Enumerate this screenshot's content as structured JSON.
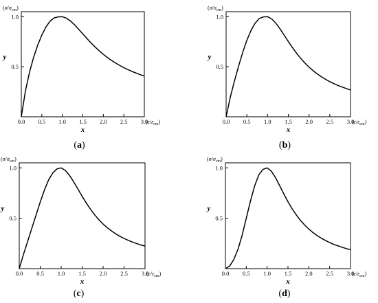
{
  "chart_data": [
    {
      "type": "line",
      "panel": "(a)",
      "caption": "(a)",
      "xlabel": "x",
      "ylabel": "y",
      "x_unit_label": "(ε/ε_cm)",
      "y_unit_label": "(σ/σ_cm)",
      "xlim": [
        0,
        3.0
      ],
      "ylim": [
        0,
        1.05
      ],
      "xticks": [
        "0.0",
        "0.5",
        "1.0",
        "1.5",
        "2.0",
        "2.5",
        "3.0"
      ],
      "yticks": [
        "0.5",
        "1.0"
      ],
      "series": [
        {
          "x": [
            0,
            0.1,
            0.2,
            0.3,
            0.4,
            0.5,
            0.6,
            0.7,
            0.8,
            0.9,
            1.0,
            1.1,
            1.2,
            1.3,
            1.4,
            1.5,
            1.6,
            1.7,
            1.8,
            1.9,
            2.0,
            2.1,
            2.2,
            2.3,
            2.4,
            2.5,
            2.6,
            2.7,
            2.8,
            2.9,
            3.0
          ],
          "y": [
            0.0,
            0.257,
            0.445,
            0.594,
            0.716,
            0.816,
            0.897,
            0.954,
            0.988,
            0.998,
            1.0,
            0.985,
            0.957,
            0.918,
            0.874,
            0.828,
            0.782,
            0.738,
            0.697,
            0.659,
            0.624,
            0.592,
            0.563,
            0.537,
            0.513,
            0.491,
            0.471,
            0.453,
            0.437,
            0.421,
            0.407
          ]
        }
      ]
    },
    {
      "type": "line",
      "panel": "(b)",
      "caption": "(b)",
      "xlabel": "x",
      "ylabel": "y",
      "x_unit_label": "(ε/ε_cm)",
      "y_unit_label": "(σ/σ_cm)",
      "xlim": [
        0,
        3.0
      ],
      "ylim": [
        0,
        1.05
      ],
      "xticks": [
        "0.0",
        "0.5",
        "1.0",
        "1.5",
        "2.0",
        "2.5",
        "3.0"
      ],
      "yticks": [
        "0.5",
        "1.0"
      ],
      "series": [
        {
          "x": [
            0,
            0.1,
            0.2,
            0.3,
            0.4,
            0.5,
            0.6,
            0.7,
            0.8,
            0.9,
            1.0,
            1.1,
            1.2,
            1.3,
            1.4,
            1.5,
            1.6,
            1.7,
            1.8,
            1.9,
            2.0,
            2.1,
            2.2,
            2.3,
            2.4,
            2.5,
            2.6,
            2.7,
            2.8,
            2.9,
            3.0
          ],
          "y": [
            0.0,
            0.194,
            0.356,
            0.505,
            0.643,
            0.764,
            0.862,
            0.935,
            0.982,
            0.998,
            1.0,
            0.977,
            0.935,
            0.879,
            0.816,
            0.752,
            0.691,
            0.634,
            0.583,
            0.537,
            0.496,
            0.46,
            0.428,
            0.399,
            0.374,
            0.351,
            0.331,
            0.313,
            0.297,
            0.282,
            0.268
          ]
        }
      ]
    },
    {
      "type": "line",
      "panel": "(c)",
      "caption": "(c)",
      "xlabel": "x",
      "ylabel": "y",
      "x_unit_label": "(ε/ε_cm)",
      "y_unit_label": "(σ/σ_cm)",
      "xlim": [
        0,
        3.0
      ],
      "ylim": [
        0,
        1.05
      ],
      "xticks": [
        "0.0",
        "0.5",
        "1.0",
        "1.5",
        "2.0",
        "2.5",
        "3.0"
      ],
      "yticks": [
        "0.5",
        "1.0"
      ],
      "series": [
        {
          "x": [
            0,
            0.1,
            0.2,
            0.3,
            0.4,
            0.5,
            0.6,
            0.7,
            0.8,
            0.9,
            1.0,
            1.1,
            1.2,
            1.3,
            1.4,
            1.5,
            1.6,
            1.7,
            1.8,
            1.9,
            2.0,
            2.1,
            2.2,
            2.3,
            2.4,
            2.5,
            2.6,
            2.7,
            2.8,
            2.9,
            3.0
          ],
          "y": [
            0.0,
            0.14,
            0.27,
            0.4,
            0.53,
            0.66,
            0.78,
            0.88,
            0.95,
            0.99,
            1.0,
            0.974,
            0.925,
            0.86,
            0.79,
            0.718,
            0.651,
            0.589,
            0.534,
            0.485,
            0.443,
            0.406,
            0.374,
            0.346,
            0.321,
            0.3,
            0.281,
            0.264,
            0.249,
            0.235,
            0.224
          ]
        }
      ]
    },
    {
      "type": "line",
      "panel": "(d)",
      "caption": "(d)",
      "xlabel": "x",
      "ylabel": "y",
      "x_unit_label": "(ε/ε_cm)",
      "y_unit_label": "(σ/σ_cm)",
      "xlim": [
        0,
        3.0
      ],
      "ylim": [
        0,
        1.05
      ],
      "xticks": [
        "0.0",
        "0.5",
        "1.0",
        "1.5",
        "2.0",
        "2.5",
        "3.0"
      ],
      "yticks": [
        "0.5",
        "1.0"
      ],
      "series": [
        {
          "x": [
            0,
            0.1,
            0.2,
            0.3,
            0.4,
            0.5,
            0.6,
            0.7,
            0.8,
            0.9,
            1.0,
            1.1,
            1.2,
            1.3,
            1.4,
            1.5,
            1.6,
            1.7,
            1.8,
            1.9,
            2.0,
            2.1,
            2.2,
            2.3,
            2.4,
            2.5,
            2.6,
            2.7,
            2.8,
            2.9,
            3.0
          ],
          "y": [
            0.0,
            0.025,
            0.09,
            0.19,
            0.33,
            0.5,
            0.67,
            0.82,
            0.93,
            0.985,
            1.0,
            0.968,
            0.904,
            0.824,
            0.742,
            0.664,
            0.594,
            0.533,
            0.479,
            0.433,
            0.393,
            0.358,
            0.328,
            0.302,
            0.279,
            0.259,
            0.241,
            0.226,
            0.212,
            0.199,
            0.188
          ]
        }
      ]
    }
  ]
}
